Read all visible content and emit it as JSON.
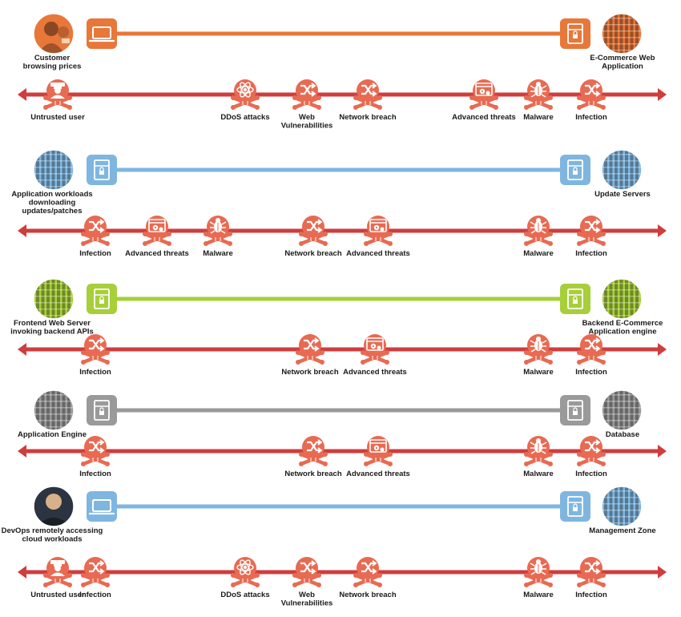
{
  "colors": {
    "orange": "#e8773a",
    "blue": "#7fb6e0",
    "green": "#a7cf3a",
    "gray": "#9a9a9a",
    "threat_red": "#cf3d3d",
    "threat_salmon": "#e86a52"
  },
  "rows": [
    {
      "id": "customer",
      "color": "orange",
      "left_label": [
        "Customer",
        "browsing prices"
      ],
      "left_image": "customer-photo",
      "left_endpoint_icon": "laptop-icon",
      "right_label": [
        "E-Commerce Web",
        "Application"
      ],
      "right_image": "server-rack-photo",
      "right_endpoint_icon": "server-icon",
      "threats": [
        {
          "icon": "untrusted-user-icon",
          "label": [
            "Untrusted user"
          ],
          "pos": 0.085
        },
        {
          "icon": "ddos-icon",
          "label": [
            "DDoS attacks"
          ],
          "pos": 0.36
        },
        {
          "icon": "web-vulnerabilities-icon",
          "label": [
            "Web",
            "Vulnerabilities"
          ],
          "pos": 0.45
        },
        {
          "icon": "network-breach-icon",
          "label": [
            "Network breach"
          ],
          "pos": 0.54
        },
        {
          "icon": "advanced-threats-icon",
          "label": [
            "Advanced threats"
          ],
          "pos": 0.71
        },
        {
          "icon": "malware-icon",
          "label": [
            "Malware"
          ],
          "pos": 0.79
        },
        {
          "icon": "infection-icon",
          "label": [
            "Infection"
          ],
          "pos": 0.868
        }
      ]
    },
    {
      "id": "workloads",
      "color": "blue",
      "left_label": [
        "Application workloads",
        "downloading",
        "updates/patches"
      ],
      "left_image": "server-rack-photo",
      "left_endpoint_icon": "server-icon",
      "right_label": [
        "Update Servers"
      ],
      "right_image": "server-rack-photo",
      "right_endpoint_icon": "server-icon",
      "threats": [
        {
          "icon": "infection-icon",
          "label": [
            "Infection"
          ],
          "pos": 0.14
        },
        {
          "icon": "advanced-threats-icon",
          "label": [
            "Advanced threats"
          ],
          "pos": 0.23
        },
        {
          "icon": "malware-icon",
          "label": [
            "Malware"
          ],
          "pos": 0.32
        },
        {
          "icon": "network-breach-icon",
          "label": [
            "Network breach"
          ],
          "pos": 0.46
        },
        {
          "icon": "advanced-threats-icon",
          "label": [
            "Advanced threats"
          ],
          "pos": 0.555
        },
        {
          "icon": "malware-icon",
          "label": [
            "Malware"
          ],
          "pos": 0.79
        },
        {
          "icon": "infection-icon",
          "label": [
            "Infection"
          ],
          "pos": 0.868
        }
      ]
    },
    {
      "id": "frontend",
      "color": "green",
      "left_label": [
        "Frontend Web Server",
        "invoking backend APIs"
      ],
      "left_image": "server-rack-photo",
      "left_endpoint_icon": "server-icon",
      "right_label": [
        "Backend E-Commerce",
        "Application engine"
      ],
      "right_image": "server-rack-photo",
      "right_endpoint_icon": "server-icon",
      "threats": [
        {
          "icon": "infection-icon",
          "label": [
            "Infection"
          ],
          "pos": 0.14
        },
        {
          "icon": "network-breach-icon",
          "label": [
            "Network breach"
          ],
          "pos": 0.455
        },
        {
          "icon": "advanced-threats-icon",
          "label": [
            "Advanced threats"
          ],
          "pos": 0.55
        },
        {
          "icon": "malware-icon",
          "label": [
            "Malware"
          ],
          "pos": 0.79
        },
        {
          "icon": "infection-icon",
          "label": [
            "Infection"
          ],
          "pos": 0.868
        }
      ]
    },
    {
      "id": "app-engine",
      "color": "gray",
      "left_label": [
        "Application Engine"
      ],
      "left_image": "server-rack-photo",
      "left_endpoint_icon": "server-icon",
      "right_label": [
        "Database"
      ],
      "right_image": "server-rack-photo",
      "right_endpoint_icon": "server-icon",
      "threats": [
        {
          "icon": "infection-icon",
          "label": [
            "Infection"
          ],
          "pos": 0.14
        },
        {
          "icon": "network-breach-icon",
          "label": [
            "Network breach"
          ],
          "pos": 0.46
        },
        {
          "icon": "advanced-threats-icon",
          "label": [
            "Advanced threats"
          ],
          "pos": 0.555
        },
        {
          "icon": "malware-icon",
          "label": [
            "Malware"
          ],
          "pos": 0.79
        },
        {
          "icon": "infection-icon",
          "label": [
            "Infection"
          ],
          "pos": 0.868
        }
      ]
    },
    {
      "id": "devops",
      "color": "blue",
      "left_label": [
        "DevOps remotely accessing",
        "cloud workloads"
      ],
      "left_image": "person-photo",
      "left_endpoint_icon": "laptop-icon",
      "right_label": [
        "Management Zone"
      ],
      "right_image": "server-rack-photo",
      "right_endpoint_icon": "server-icon",
      "threats": [
        {
          "icon": "untrusted-user-icon",
          "label": [
            "Untrusted user"
          ],
          "pos": 0.085
        },
        {
          "icon": "infection-icon",
          "label": [
            "Infection"
          ],
          "pos": 0.14
        },
        {
          "icon": "ddos-icon",
          "label": [
            "DDoS attacks"
          ],
          "pos": 0.36
        },
        {
          "icon": "web-vulnerabilities-icon",
          "label": [
            "Web",
            "Vulnerabilities"
          ],
          "pos": 0.45
        },
        {
          "icon": "network-breach-icon",
          "label": [
            "Network breach"
          ],
          "pos": 0.54
        },
        {
          "icon": "malware-icon",
          "label": [
            "Malware"
          ],
          "pos": 0.79
        },
        {
          "icon": "infection-icon",
          "label": [
            "Infection"
          ],
          "pos": 0.868
        }
      ]
    }
  ]
}
